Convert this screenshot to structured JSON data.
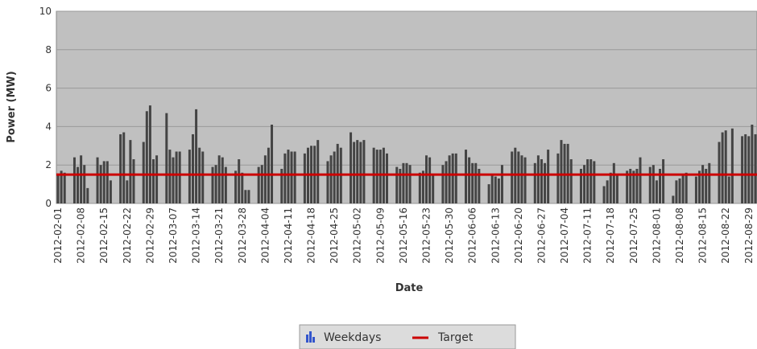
{
  "chart_data": {
    "type": "bar",
    "ylabel": "Power (MW)",
    "xlabel": "Date",
    "ylim": [
      0,
      10
    ],
    "yticks": [
      0,
      2,
      4,
      6,
      8,
      10
    ],
    "grid": true,
    "categories": [
      "2012-02-01",
      null,
      null,
      null,
      null,
      null,
      null,
      "2012-02-08",
      null,
      null,
      null,
      null,
      null,
      null,
      "2012-02-15",
      null,
      null,
      null,
      null,
      null,
      null,
      "2012-02-22",
      null,
      null,
      null,
      null,
      null,
      null,
      "2012-02-29",
      null,
      null,
      null,
      null,
      null,
      null,
      "2012-03-07",
      null,
      null,
      null,
      null,
      null,
      null,
      "2012-03-14",
      null,
      null,
      null,
      null,
      null,
      null,
      "2012-03-21",
      null,
      null,
      null,
      null,
      null,
      null,
      "2012-03-28",
      null,
      null,
      null,
      null,
      null,
      null,
      "2012-04-04",
      null,
      null,
      null,
      null,
      null,
      null,
      "2012-04-11",
      null,
      null,
      null,
      null,
      null,
      null,
      "2012-04-18",
      null,
      null,
      null,
      null,
      null,
      null,
      "2012-04-25",
      null,
      null,
      null,
      null,
      null,
      null,
      "2012-05-02",
      null,
      null,
      null,
      null,
      null,
      null,
      "2012-05-09",
      null,
      null,
      null,
      null,
      null,
      null,
      "2012-05-16",
      null,
      null,
      null,
      null,
      null,
      null,
      "2012-05-23",
      null,
      null,
      null,
      null,
      null,
      null,
      "2012-05-30",
      null,
      null,
      null,
      null,
      null,
      null,
      "2012-06-06",
      null,
      null,
      null,
      null,
      null,
      null,
      "2012-06-13",
      null,
      null,
      null,
      null,
      null,
      null,
      "2012-06-20",
      null,
      null,
      null,
      null,
      null,
      null,
      "2012-06-27",
      null,
      null,
      null,
      null,
      null,
      null,
      "2012-07-04",
      null,
      null,
      null,
      null,
      null,
      null,
      "2012-07-11",
      null,
      null,
      null,
      null,
      null,
      null,
      "2012-07-18",
      null,
      null,
      null,
      null,
      null,
      null,
      "2012-07-25",
      null,
      null,
      null,
      null,
      null,
      null,
      "2012-08-01",
      null,
      null,
      null,
      null,
      null,
      null,
      "2012-08-08",
      null,
      null,
      null,
      null,
      null,
      null,
      "2012-08-15",
      null,
      null,
      null,
      null,
      null,
      null,
      "2012-08-22",
      null,
      null,
      null,
      null,
      null,
      null,
      "2012-08-29",
      null,
      null
    ],
    "series": [
      {
        "name": "Weekdays",
        "color": "#444444",
        "values": [
          1.5,
          1.7,
          1.6,
          null,
          null,
          2.4,
          1.9,
          2.5,
          2.0,
          0.8,
          null,
          null,
          2.4,
          2.0,
          2.2,
          2.2,
          1.2,
          null,
          null,
          3.6,
          3.7,
          1.2,
          3.3,
          2.3,
          null,
          null,
          3.2,
          4.8,
          5.1,
          2.3,
          2.5,
          null,
          null,
          4.7,
          2.8,
          2.4,
          2.7,
          2.7,
          null,
          null,
          2.8,
          3.6,
          4.9,
          2.9,
          2.7,
          null,
          null,
          1.9,
          2.0,
          2.5,
          2.4,
          1.9,
          null,
          null,
          1.7,
          2.3,
          1.6,
          0.7,
          0.7,
          null,
          null,
          1.9,
          2.0,
          2.5,
          2.9,
          4.1,
          null,
          null,
          1.8,
          2.6,
          2.8,
          2.7,
          2.7,
          null,
          null,
          2.6,
          2.9,
          3.0,
          3.0,
          3.3,
          null,
          null,
          2.2,
          2.5,
          2.7,
          3.1,
          2.9,
          null,
          null,
          3.7,
          3.2,
          3.3,
          3.2,
          3.3,
          null,
          null,
          2.9,
          2.8,
          2.8,
          2.9,
          2.6,
          null,
          null,
          1.9,
          1.8,
          2.1,
          2.1,
          2.0,
          null,
          null,
          1.6,
          1.7,
          2.5,
          2.4,
          1.5,
          null,
          null,
          2.0,
          2.2,
          2.5,
          2.6,
          2.6,
          null,
          null,
          2.8,
          2.4,
          2.1,
          2.1,
          1.8,
          null,
          null,
          1.0,
          1.5,
          1.4,
          1.3,
          2.0,
          null,
          null,
          2.7,
          2.9,
          2.7,
          2.5,
          2.4,
          null,
          null,
          2.1,
          2.5,
          2.3,
          2.1,
          2.8,
          null,
          null,
          2.6,
          3.3,
          3.1,
          3.1,
          2.3,
          null,
          null,
          1.8,
          2.0,
          2.3,
          2.3,
          2.2,
          null,
          null,
          0.9,
          1.2,
          1.6,
          2.1,
          1.5,
          null,
          null,
          1.7,
          1.8,
          1.7,
          1.8,
          2.4,
          null,
          null,
          1.9,
          2.0,
          1.2,
          1.8,
          2.3,
          null,
          null,
          0.4,
          1.2,
          1.3,
          1.5,
          1.6,
          null,
          null,
          1.4,
          1.7,
          2.0,
          1.8,
          2.1,
          null,
          null,
          3.2,
          3.7,
          3.8,
          1.4,
          3.9,
          null,
          null,
          3.5,
          3.6,
          3.5,
          4.1,
          3.6
        ]
      }
    ],
    "target": {
      "name": "Target",
      "value": 1.5,
      "color": "#cc0000"
    }
  }
}
